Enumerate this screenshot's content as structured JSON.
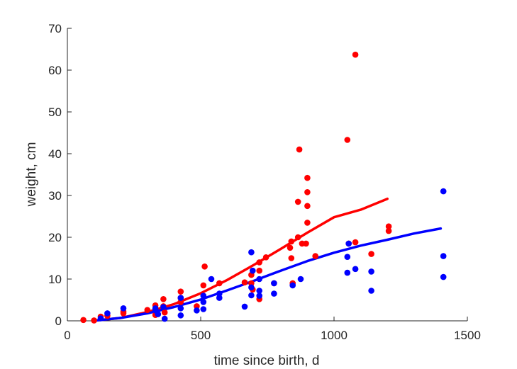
{
  "chart_data": {
    "type": "scatter",
    "title": "",
    "xlabel": "time since birth, d",
    "ylabel": "weight, cm",
    "xlim": [
      0,
      1500
    ],
    "ylim": [
      0,
      70
    ],
    "xticks": [
      0,
      500,
      1000,
      1500
    ],
    "yticks": [
      0,
      10,
      20,
      30,
      40,
      50,
      60,
      70
    ],
    "xtick_labels": [
      "0",
      "500",
      "1000",
      "1500"
    ],
    "ytick_labels": [
      "0",
      "10",
      "20",
      "30",
      "40",
      "50",
      "60",
      "70"
    ],
    "grid": false,
    "legend": "none",
    "series": [
      {
        "color": "#ff0000",
        "points": [
          [
            60,
            0.2
          ],
          [
            100,
            0.1
          ],
          [
            125,
            1.0
          ],
          [
            150,
            1.2
          ],
          [
            210,
            1.8
          ],
          [
            210,
            2.2
          ],
          [
            300,
            2.6
          ],
          [
            330,
            1.4
          ],
          [
            330,
            3.7
          ],
          [
            360,
            5.2
          ],
          [
            360,
            3.5
          ],
          [
            365,
            2.0
          ],
          [
            425,
            7.0
          ],
          [
            425,
            5.5
          ],
          [
            425,
            4.5
          ],
          [
            485,
            3.5
          ],
          [
            510,
            8.5
          ],
          [
            515,
            13.0
          ],
          [
            570,
            9.0
          ],
          [
            665,
            9.2
          ],
          [
            690,
            11.0
          ],
          [
            690,
            9.0
          ],
          [
            695,
            7.5
          ],
          [
            720,
            14.0
          ],
          [
            720,
            12.0
          ],
          [
            720,
            5.2
          ],
          [
            745,
            15.2
          ],
          [
            775,
            9.0
          ],
          [
            835,
            17.5
          ],
          [
            840,
            15.0
          ],
          [
            840,
            19.0
          ],
          [
            845,
            9.0
          ],
          [
            865,
            20.0
          ],
          [
            865,
            28.5
          ],
          [
            870,
            41.0
          ],
          [
            880,
            18.5
          ],
          [
            895,
            18.5
          ],
          [
            900,
            23.5
          ],
          [
            900,
            27.5
          ],
          [
            900,
            30.8
          ],
          [
            900,
            34.2
          ],
          [
            930,
            15.5
          ],
          [
            1050,
            43.3
          ],
          [
            1055,
            18.5
          ],
          [
            1080,
            63.7
          ],
          [
            1080,
            18.8
          ],
          [
            1140,
            16.0
          ],
          [
            1205,
            21.5
          ],
          [
            1205,
            22.6
          ]
        ]
      },
      {
        "color": "#0000ff",
        "points": [
          [
            125,
            0.6
          ],
          [
            150,
            1.8
          ],
          [
            210,
            3.0
          ],
          [
            330,
            2.5
          ],
          [
            330,
            3.0
          ],
          [
            340,
            1.6
          ],
          [
            360,
            3.3
          ],
          [
            365,
            0.5
          ],
          [
            425,
            1.3
          ],
          [
            425,
            3.0
          ],
          [
            425,
            5.5
          ],
          [
            485,
            2.5
          ],
          [
            510,
            4.5
          ],
          [
            510,
            6.0
          ],
          [
            510,
            2.8
          ],
          [
            540,
            10.0
          ],
          [
            570,
            5.5
          ],
          [
            570,
            6.5
          ],
          [
            665,
            3.4
          ],
          [
            690,
            16.4
          ],
          [
            690,
            6.1
          ],
          [
            690,
            8.0
          ],
          [
            695,
            12.0
          ],
          [
            720,
            7.2
          ],
          [
            720,
            6.0
          ],
          [
            720,
            10.0
          ],
          [
            775,
            6.5
          ],
          [
            775,
            9.0
          ],
          [
            845,
            8.5
          ],
          [
            875,
            10.0
          ],
          [
            1050,
            11.5
          ],
          [
            1050,
            15.3
          ],
          [
            1055,
            18.5
          ],
          [
            1080,
            12.4
          ],
          [
            1140,
            11.8
          ],
          [
            1140,
            7.2
          ],
          [
            1410,
            31.0
          ],
          [
            1410,
            15.5
          ],
          [
            1410,
            10.5
          ]
        ]
      }
    ],
    "fits": [
      {
        "color": "#ff0000",
        "points": [
          [
            100,
            0.05
          ],
          [
            200,
            0.7
          ],
          [
            300,
            2.1
          ],
          [
            400,
            4.0
          ],
          [
            500,
            6.6
          ],
          [
            600,
            9.8
          ],
          [
            700,
            13.4
          ],
          [
            800,
            17.2
          ],
          [
            900,
            21.1
          ],
          [
            1000,
            24.8
          ],
          [
            1100,
            26.6
          ],
          [
            1200,
            29.2
          ]
        ]
      },
      {
        "color": "#0000ff",
        "points": [
          [
            100,
            0.05
          ],
          [
            200,
            0.7
          ],
          [
            300,
            1.8
          ],
          [
            400,
            3.3
          ],
          [
            500,
            5.1
          ],
          [
            600,
            7.3
          ],
          [
            700,
            9.6
          ],
          [
            800,
            12.0
          ],
          [
            900,
            14.3
          ],
          [
            1000,
            16.3
          ],
          [
            1100,
            18.0
          ],
          [
            1200,
            19.4
          ],
          [
            1300,
            20.9
          ],
          [
            1400,
            22.1
          ]
        ]
      }
    ]
  }
}
